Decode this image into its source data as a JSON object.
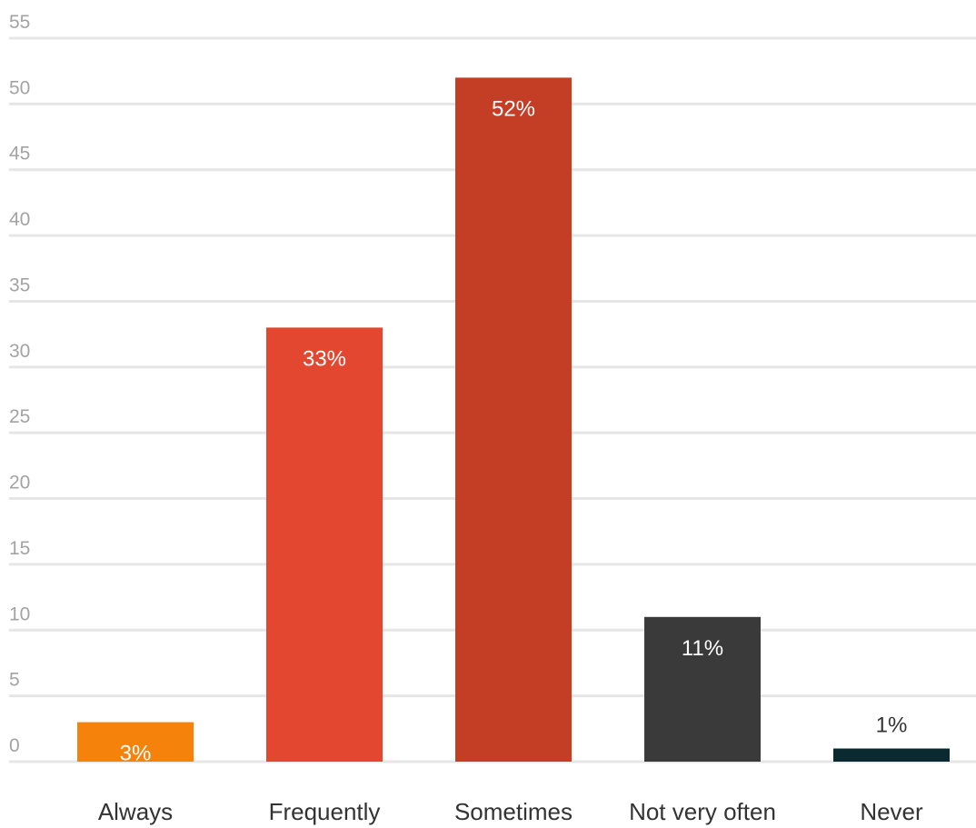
{
  "chart_data": {
    "type": "bar",
    "categories": [
      "Always",
      "Frequently",
      "Sometimes",
      "Not very often",
      "Never"
    ],
    "values": [
      3,
      33,
      52,
      11,
      1
    ],
    "data_labels": [
      "3%",
      "33%",
      "52%",
      "11%",
      "1%"
    ],
    "colors": [
      "#f5820a",
      "#e4472f",
      "#c43d25",
      "#3a3a3a",
      "#0b2a30"
    ],
    "ylim": [
      0,
      55
    ],
    "yticks": [
      0,
      5,
      10,
      15,
      20,
      25,
      30,
      35,
      40,
      45,
      50,
      55
    ],
    "grid": true,
    "title": "",
    "xlabel": "",
    "ylabel": ""
  }
}
